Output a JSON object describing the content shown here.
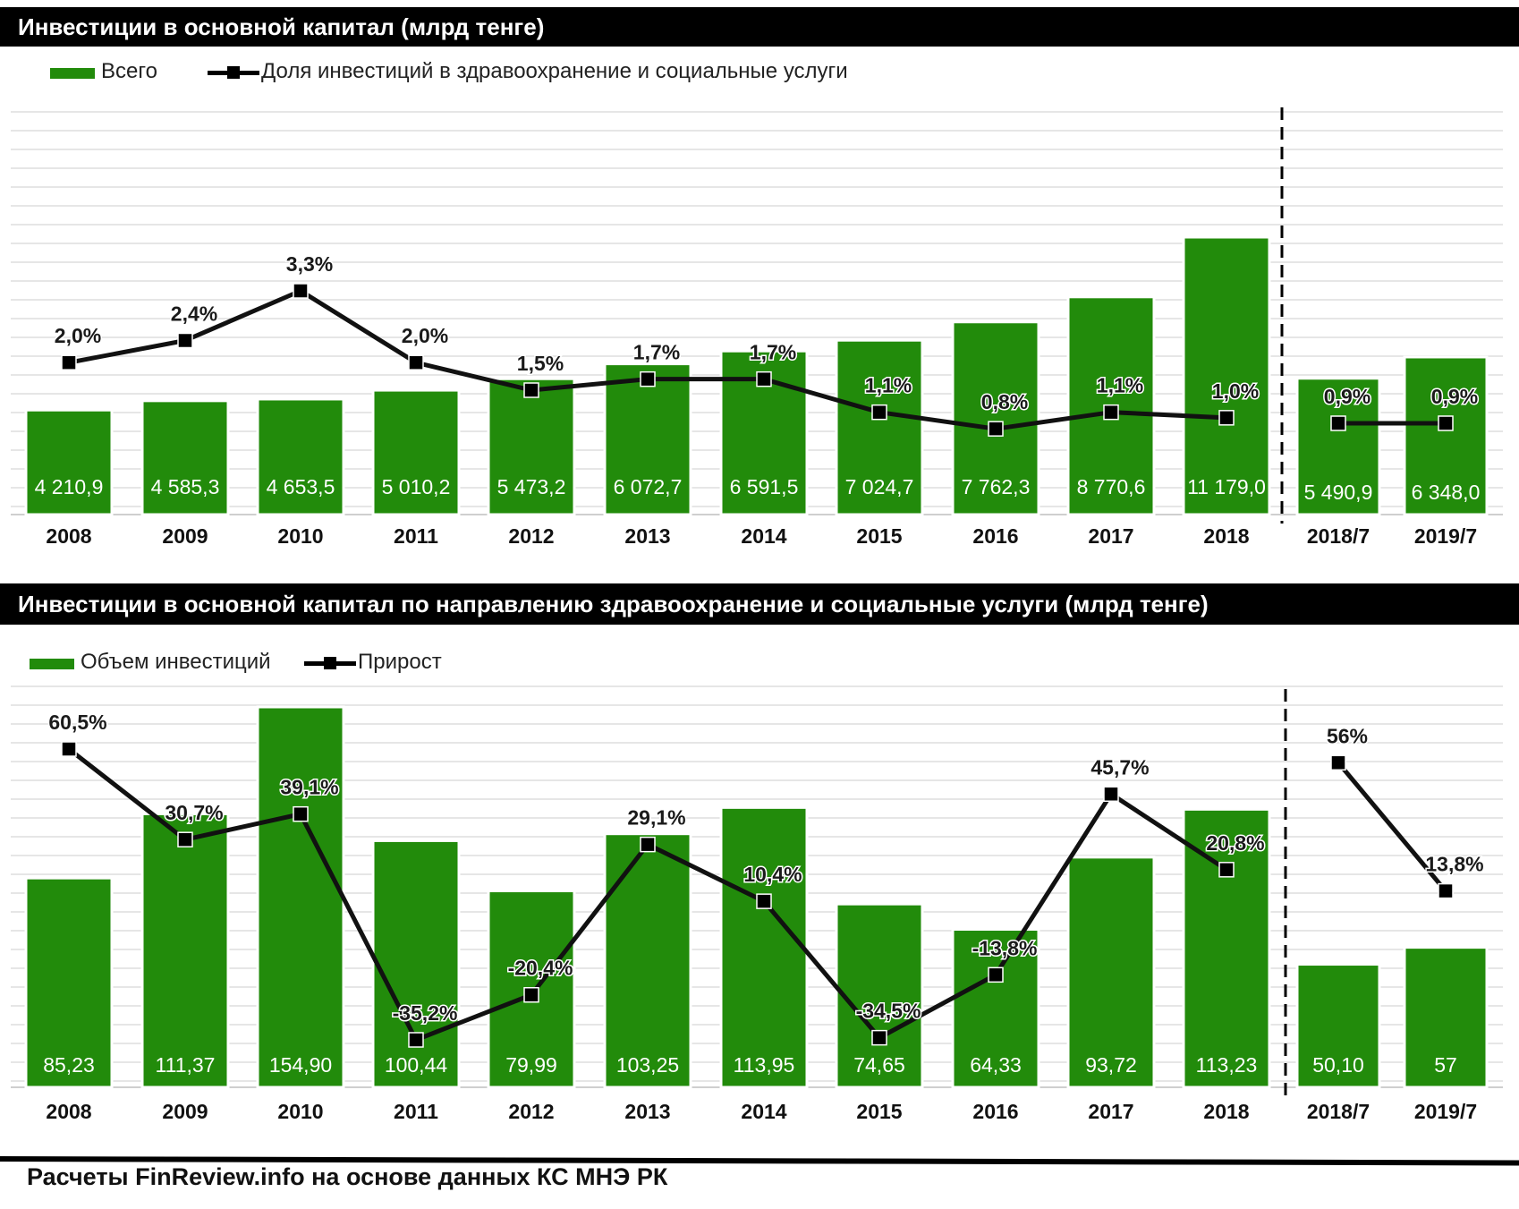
{
  "colors": {
    "bar": "#228B0B",
    "bar_edge": "#ffffff",
    "line": "#111111",
    "marker": "#000000"
  },
  "chart1": {
    "title": "Инвестиции в основной капитал (млрд тенге)",
    "legend": {
      "bars": "Всего",
      "line": "Доля инвестиций в здравоохранение и социальные услуги"
    }
  },
  "chart2": {
    "title": "Инвестиции в основной капитал по направлению здравоохранение и социальные услуги (млрд тенге)",
    "legend": {
      "bars": "Объем инвестиций",
      "line": "Прирост"
    }
  },
  "footer": "Расчеты FinReview.info  на основе данных КС МНЭ РК",
  "chart_data": [
    {
      "type": "bar",
      "title": "Инвестиции в основной капитал (млрд тенге)",
      "categories": [
        "2008",
        "2009",
        "2010",
        "2011",
        "2012",
        "2013",
        "2014",
        "2015",
        "2016",
        "2017",
        "2018",
        "2018/7",
        "2019/7"
      ],
      "series": [
        {
          "name": "Всего",
          "type": "bar",
          "values": [
            4210.9,
            4585.3,
            4653.5,
            5010.2,
            5473.2,
            6072.7,
            6591.5,
            7024.7,
            7762.3,
            8770.6,
            11179.0,
            5490.9,
            6348.0
          ],
          "labels": [
            "4 210,9",
            "4 585,3",
            "4 653,5",
            "5 010,2",
            "5 473,2",
            "6 072,7",
            "6 591,5",
            "7 024,7",
            "7 762,3",
            "8 770,6",
            "11 179,0",
            "5 490,9",
            "6 348,0"
          ]
        },
        {
          "name": "Доля инвестиций в здравоохранение и социальные услуги",
          "type": "line",
          "values": [
            2.0,
            2.4,
            3.3,
            2.0,
            1.5,
            1.7,
            1.7,
            1.1,
            0.8,
            1.1,
            1.0,
            0.9,
            0.9
          ],
          "labels": [
            "2,0%",
            "2,4%",
            "3,3%",
            "2,0%",
            "1,5%",
            "1,7%",
            "1,7%",
            "1,1%",
            "0,8%",
            "1,1%",
            "1,0%",
            "0,9%",
            "0,9%"
          ],
          "segments": [
            [
              0,
              10
            ],
            [
              11,
              12
            ]
          ]
        }
      ],
      "divider_after": "2018",
      "grid": true
    },
    {
      "type": "bar",
      "title": "Инвестиции в основной капитал по направлению здравоохранение и социальные услуги (млрд тенге)",
      "categories": [
        "2008",
        "2009",
        "2010",
        "2011",
        "2012",
        "2013",
        "2014",
        "2015",
        "2016",
        "2017",
        "2018",
        "2018/7",
        "2019/7"
      ],
      "series": [
        {
          "name": "Объем инвестиций",
          "type": "bar",
          "values": [
            85.23,
            111.37,
            154.9,
            100.44,
            79.99,
            103.25,
            113.95,
            74.65,
            64.33,
            93.72,
            113.23,
            50.1,
            57
          ],
          "labels": [
            "85,23",
            "111,37",
            "154,90",
            "100,44",
            "79,99",
            "103,25",
            "113,95",
            "74,65",
            "64,33",
            "93,72",
            "113,23",
            "50,10",
            "57"
          ]
        },
        {
          "name": "Прирост",
          "type": "line",
          "values": [
            60.5,
            30.7,
            39.1,
            -35.2,
            -20.4,
            29.1,
            10.4,
            -34.5,
            -13.8,
            45.7,
            20.8,
            56,
            13.8
          ],
          "labels": [
            "60,5%",
            "30,7%",
            "39,1%",
            "-35,2%",
            "-20,4%",
            "29,1%",
            "10,4%",
            "-34,5%",
            "-13,8%",
            "45,7%",
            "20,8%",
            "56%",
            "13,8%"
          ],
          "segments": [
            [
              0,
              10
            ],
            [
              11,
              12
            ]
          ]
        }
      ],
      "divider_after": "2018",
      "grid": true
    }
  ]
}
